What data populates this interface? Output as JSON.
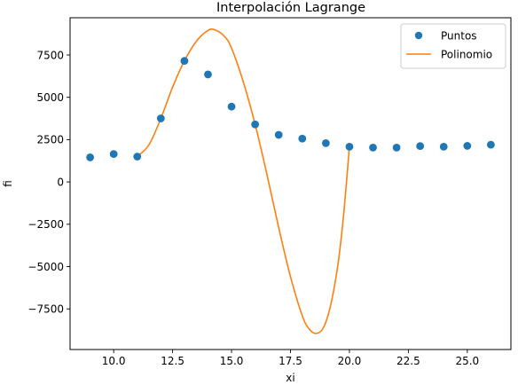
{
  "chart_data": {
    "type": "scatter",
    "title": "Interpolación Lagrange",
    "xlabel": "xi",
    "ylabel": "fi",
    "xlim": [
      8.15,
      26.85
    ],
    "ylim": [
      -9900,
      9700
    ],
    "xticks": [
      10.0,
      12.5,
      15.0,
      17.5,
      20.0,
      22.5,
      25.0
    ],
    "xtick_labels": [
      "10.0",
      "12.5",
      "15.0",
      "17.5",
      "20.0",
      "22.5",
      "25.0"
    ],
    "yticks": [
      -7500,
      -5000,
      -2500,
      0,
      2500,
      5000,
      7500
    ],
    "ytick_labels": [
      "−7500",
      "−5000",
      "−2500",
      "0",
      "2500",
      "5000",
      "7500"
    ],
    "grid": false,
    "legend_position": "upper-right",
    "series": [
      {
        "name": "Puntos",
        "kind": "scatter",
        "color": "#1f77b4",
        "x": [
          9,
          10,
          11,
          12,
          13,
          14,
          15,
          16,
          17,
          18,
          19,
          20,
          21,
          22,
          23,
          24,
          25,
          26
        ],
        "y": [
          1450,
          1650,
          1500,
          3750,
          7150,
          6350,
          4450,
          3400,
          2780,
          2560,
          2290,
          2080,
          2030,
          2030,
          2120,
          2080,
          2130,
          2200
        ]
      },
      {
        "name": "Polinomio",
        "kind": "line",
        "color": "#ff7f0e",
        "x": [
          11,
          11.5,
          12,
          12.5,
          13,
          13.5,
          14,
          14.3,
          14.7,
          15,
          15.5,
          16,
          16.5,
          17,
          17.5,
          18,
          18.3,
          18.6,
          18.9,
          19.2,
          19.5,
          19.75,
          20
        ],
        "y": [
          1500,
          2200,
          3750,
          5600,
          7150,
          8300,
          8950,
          8980,
          8600,
          7900,
          5900,
          3400,
          450,
          -2700,
          -5600,
          -7900,
          -8700,
          -8950,
          -8600,
          -7300,
          -5000,
          -2000,
          2080
        ]
      }
    ]
  }
}
